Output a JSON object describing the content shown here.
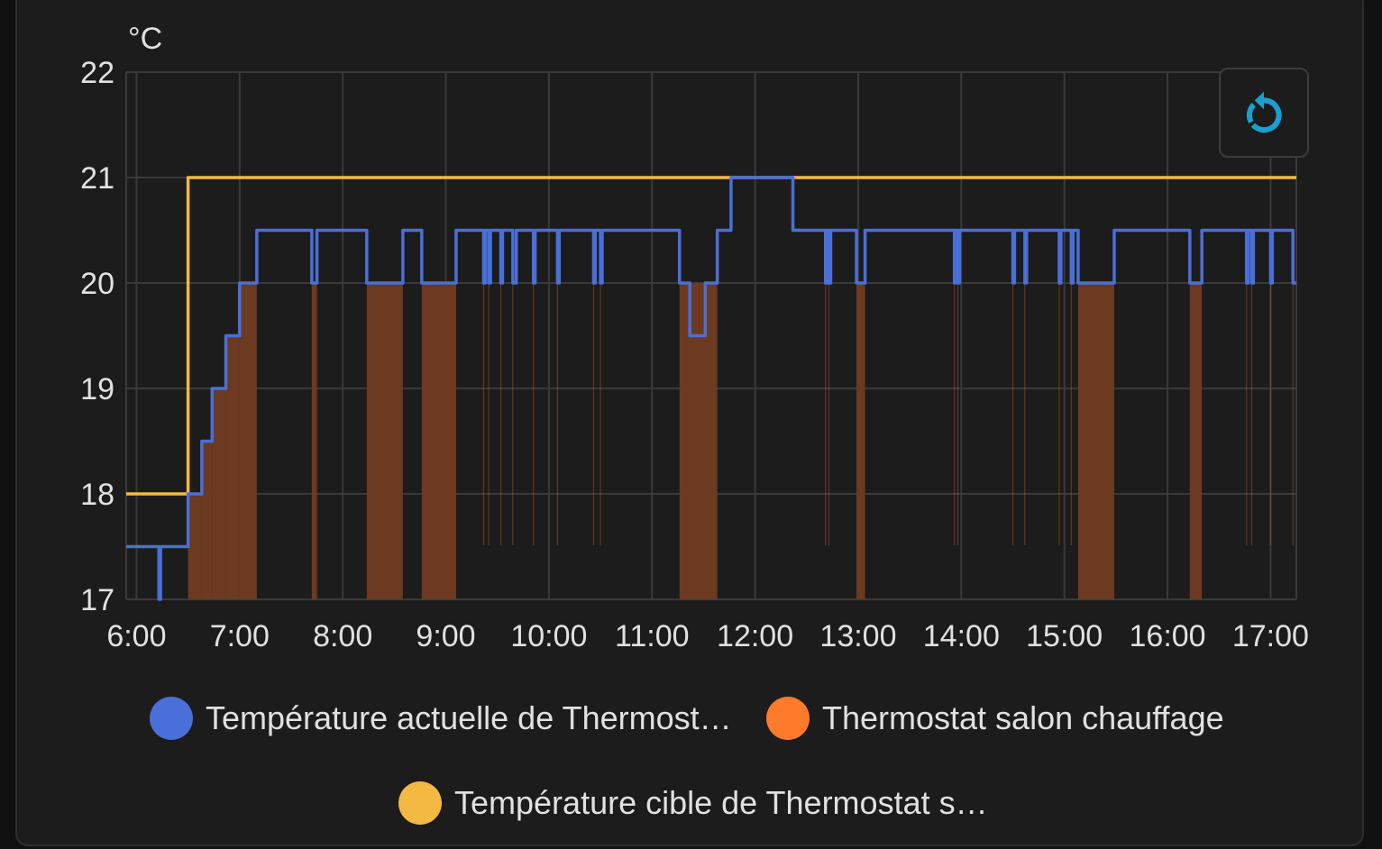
{
  "chart_data": {
    "type": "line",
    "unit": "°C",
    "ylim": [
      17,
      22
    ],
    "yticks": [
      "17",
      "18",
      "19",
      "20",
      "21",
      "22"
    ],
    "xlim": [
      "05:54",
      "17:15"
    ],
    "xticks": [
      "6:00",
      "7:00",
      "8:00",
      "9:00",
      "10:00",
      "11:00",
      "12:00",
      "13:00",
      "14:00",
      "15:00",
      "16:00",
      "17:00"
    ],
    "grid": true,
    "legend_position": "bottom",
    "series": [
      {
        "name": "Température actuelle de Thermost…",
        "color": "#4a6fd8",
        "style": "step",
        "points": [
          [
            "05:54",
            17.5
          ],
          [
            "06:13",
            17
          ],
          [
            "06:14",
            17.5
          ],
          [
            "06:30",
            18
          ],
          [
            "06:38",
            18.5
          ],
          [
            "06:44",
            19
          ],
          [
            "06:52",
            19.5
          ],
          [
            "07:00",
            20
          ],
          [
            "07:10",
            20.5
          ],
          [
            "07:42",
            20
          ],
          [
            "07:45",
            20.5
          ],
          [
            "08:14",
            20
          ],
          [
            "08:35",
            20.5
          ],
          [
            "08:46",
            20
          ],
          [
            "09:06",
            20.5
          ],
          [
            "09:22",
            20
          ],
          [
            "09:23",
            20.5
          ],
          [
            "09:25",
            20
          ],
          [
            "09:26",
            20.5
          ],
          [
            "09:32",
            20
          ],
          [
            "09:33",
            20.5
          ],
          [
            "09:39",
            20
          ],
          [
            "09:41",
            20.5
          ],
          [
            "09:51",
            20
          ],
          [
            "09:52",
            20.5
          ],
          [
            "10:05",
            20
          ],
          [
            "10:06",
            20.5
          ],
          [
            "10:26",
            20
          ],
          [
            "10:27",
            20.5
          ],
          [
            "10:30",
            20
          ],
          [
            "10:31",
            20.5
          ],
          [
            "11:16",
            20
          ],
          [
            "11:22",
            19.5
          ],
          [
            "11:31",
            20
          ],
          [
            "11:38",
            20.5
          ],
          [
            "11:46",
            21
          ],
          [
            "12:22",
            20.5
          ],
          [
            "12:41",
            20
          ],
          [
            "12:42",
            20.5
          ],
          [
            "12:43",
            20
          ],
          [
            "12:44",
            20.5
          ],
          [
            "12:59",
            20
          ],
          [
            "13:04",
            20.5
          ],
          [
            "13:56",
            20
          ],
          [
            "13:57",
            20.5
          ],
          [
            "13:58",
            20
          ],
          [
            "13:59",
            20.5
          ],
          [
            "14:30",
            20
          ],
          [
            "14:31",
            20.5
          ],
          [
            "14:37",
            20
          ],
          [
            "14:38",
            20.5
          ],
          [
            "14:57",
            20
          ],
          [
            "14:58",
            20.5
          ],
          [
            "15:04",
            20
          ],
          [
            "15:05",
            20.5
          ],
          [
            "15:08",
            20
          ],
          [
            "15:29",
            20.5
          ],
          [
            "16:13",
            20
          ],
          [
            "16:20",
            20.5
          ],
          [
            "16:46",
            20
          ],
          [
            "16:47",
            20.5
          ],
          [
            "16:49",
            20
          ],
          [
            "16:50",
            20.5
          ],
          [
            "17:00",
            20
          ],
          [
            "17:01",
            20.5
          ],
          [
            "17:13",
            20
          ],
          [
            "17:15",
            20
          ]
        ]
      },
      {
        "name": "Thermostat salon chauffage",
        "color": "#ff7a2a",
        "style": "filled-step",
        "points": [
          [
            "06:30",
            18
          ],
          [
            "06:38",
            18.5
          ],
          [
            "06:44",
            19
          ],
          [
            "06:52",
            19.5
          ],
          [
            "07:00",
            20
          ],
          [
            "07:10",
            null
          ],
          [
            "07:42",
            20
          ],
          [
            "07:45",
            null
          ],
          [
            "08:14",
            20
          ],
          [
            "08:35",
            null
          ],
          [
            "08:46",
            20
          ],
          [
            "09:06",
            null
          ],
          [
            "11:16",
            20
          ],
          [
            "11:38",
            null
          ],
          [
            "12:59",
            20
          ],
          [
            "13:04",
            null
          ],
          [
            "15:08",
            20
          ],
          [
            "15:29",
            null
          ],
          [
            "16:13",
            20
          ],
          [
            "16:20",
            null
          ]
        ],
        "brief_on": [
          "09:22",
          "09:25",
          "09:32",
          "09:39",
          "09:51",
          "10:05",
          "10:26",
          "10:30",
          "12:41",
          "12:43",
          "13:56",
          "13:58",
          "14:30",
          "14:37",
          "14:57",
          "15:04",
          "16:46",
          "16:49",
          "17:00",
          "17:13"
        ]
      },
      {
        "name": "Température cible de Thermostat s…",
        "color": "#f4b942",
        "style": "step",
        "points": [
          [
            "05:54",
            18
          ],
          [
            "06:30",
            21
          ],
          [
            "17:15",
            21
          ]
        ]
      }
    ]
  },
  "toolbar": {
    "refresh_icon": "refresh-icon",
    "refresh_color": "#1a9fd2"
  }
}
